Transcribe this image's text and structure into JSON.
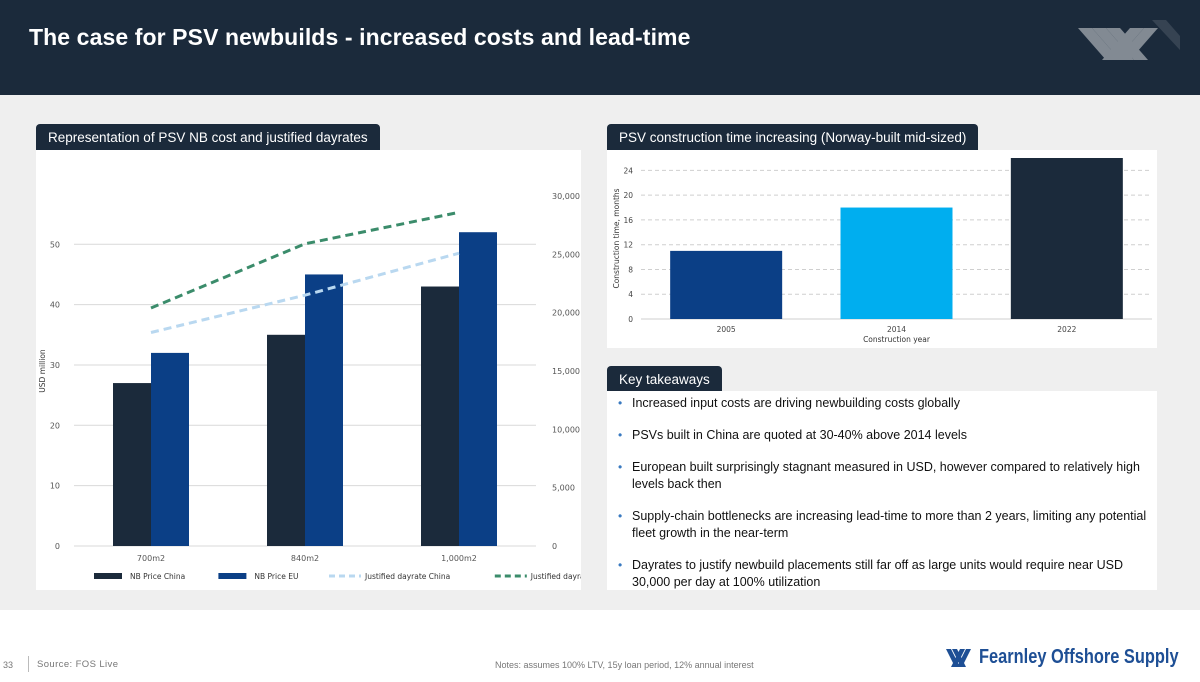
{
  "header": {
    "title": "The case for PSV newbuilds - increased costs and lead-time"
  },
  "left_panel": {
    "tag": "Representation of PSV NB cost and justified dayrates"
  },
  "right_panel": {
    "tag": "PSV construction time increasing (Norway-built mid-sized)"
  },
  "takeaways": {
    "tag": "Key takeaways",
    "items": [
      "Increased input costs are driving newbuilding costs globally",
      "PSVs built in China are quoted at 30-40% above 2014 levels",
      "European built surprisingly stagnant measured in USD, however compared to relatively high levels back then",
      "Supply-chain bottlenecks are increasing lead-time to more than 2 years, limiting any potential fleet growth in the near-term",
      "Dayrates to justify newbuild placements still far off as large units would require near USD 30,000 per day at 100% utilization"
    ]
  },
  "colors": {
    "navy": "#1b2a3b",
    "blue": "#0b3f86",
    "lightblue": "#b9d8f0",
    "green": "#3b8c6b",
    "cyan": "#00aeef",
    "brand": "#1e4f95"
  },
  "chart_data": [
    {
      "type": "bar",
      "title": "Representation of PSV NB cost and justified dayrates",
      "categories": [
        "700m2",
        "840m2",
        "1,000m2"
      ],
      "ylabel": "USD million",
      "ylim": [
        0,
        58
      ],
      "yticks": [
        0,
        10,
        20,
        30,
        40,
        50
      ],
      "y2lim": [
        0,
        30000
      ],
      "y2ticks": [
        0,
        5000,
        10000,
        15000,
        20000,
        25000,
        30000
      ],
      "y2tick_labels": [
        "0",
        "5,000",
        "10,000",
        "15,000",
        "20,000",
        "25,000",
        "30,000"
      ],
      "series": [
        {
          "name": "NB Price China",
          "type": "bar",
          "axis": "left",
          "values": [
            27,
            35,
            43
          ]
        },
        {
          "name": "NB Price EU",
          "type": "bar",
          "axis": "left",
          "values": [
            32,
            45,
            52
          ]
        },
        {
          "name": "Justified dayrate China",
          "type": "line",
          "axis": "right",
          "values": [
            18300,
            21500,
            25100
          ]
        },
        {
          "name": "Justified dayrate EU",
          "type": "line",
          "axis": "right",
          "values": [
            20400,
            25900,
            28600
          ]
        }
      ],
      "legend": "bottom"
    },
    {
      "type": "bar",
      "title": "PSV construction time increasing (Norway-built mid-sized)",
      "categories": [
        "2005",
        "2014",
        "2022"
      ],
      "values": [
        11,
        18,
        26
      ],
      "xlabel": "Construction year",
      "ylabel": "Construction time, months",
      "ylim": [
        0,
        26
      ],
      "yticks": [
        0,
        4,
        8,
        12,
        16,
        20,
        24
      ]
    }
  ],
  "footer": {
    "page_number": "33",
    "source": "Source: FOS Live",
    "notes": "Notes: assumes 100% LTV, 15y loan period, 12% annual interest",
    "brand_name": "Fearnley Offshore Supply"
  }
}
